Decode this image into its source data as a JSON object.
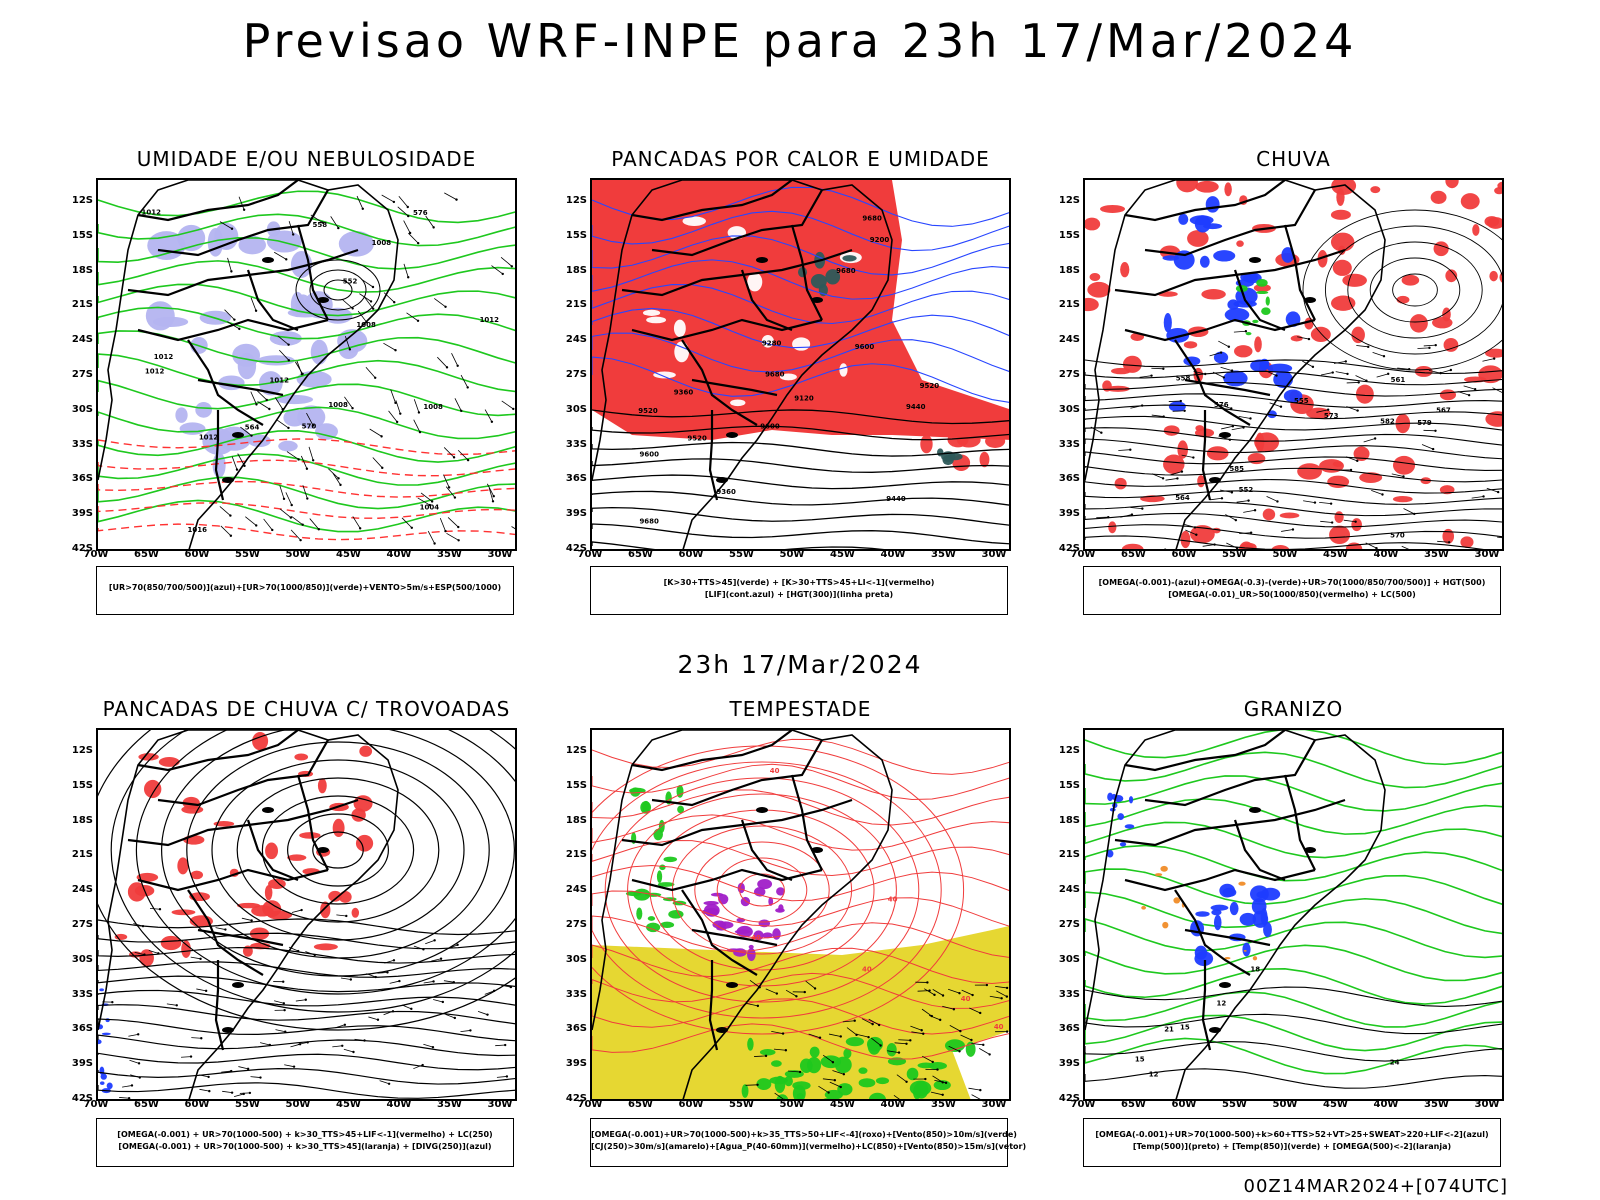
{
  "main_title": "Previsao WRF-INPE  para 23h 17/Mar/2024",
  "mid_date": "23h 17/Mar/2024",
  "run_info": "00Z14MAR2024+[074UTC]",
  "lat_ticks": [
    "12S",
    "15S",
    "18S",
    "21S",
    "24S",
    "27S",
    "30S",
    "33S",
    "36S",
    "39S",
    "42S"
  ],
  "lon_ticks": [
    "70W",
    "65W",
    "60W",
    "55W",
    "50W",
    "45W",
    "40W",
    "35W",
    "30W"
  ],
  "panels": [
    {
      "title": "UMIDADE E/OU NEBULOSIDADE",
      "legend": [
        "[UR>70(850/700/500)](azul)+[UR>70(1000/850)](verde)+VENTO>5m/s+ESP(500/1000)"
      ],
      "contour_labels": [
        "1012",
        "1012",
        "1012",
        "1008",
        "1012",
        "1004",
        "1012",
        "1016",
        "1008",
        "1008",
        "1008",
        "576",
        "570",
        "564",
        "552",
        "558",
        "1012"
      ],
      "colors": {
        "fill": "#b4b4f0",
        "contour": "#1ec81e",
        "dashed": "#ff3232"
      }
    },
    {
      "title": "PANCADAS POR CALOR E UMIDADE",
      "legend": [
        "[K>30+TTS>45](verde) + [K>30+TTS>45+LI<-1](vermelho)",
        "[LIF](cont.azul) + [HGT(300)](linha preta)"
      ],
      "contour_labels": [
        "9680",
        "9680",
        "9680",
        "9680",
        "9600",
        "9600",
        "9520",
        "9600",
        "9520",
        "9440",
        "9440",
        "9360",
        "9280",
        "9360",
        "9200",
        "9120",
        "9520"
      ],
      "colors": {
        "fill": "#f03c3c",
        "contour": "#2846ff",
        "dark": "#2d5a5a"
      }
    },
    {
      "title": "CHUVA",
      "legend": [
        "[OMEGA(-0.001)-(azul)+OMEGA(-0.3)-(verde)+UR>70(1000/850/700/500)] + HGT(500)",
        "[OMEGA(-0.01)_UR>50(1000/850)(vermelho) + LC(500)"
      ],
      "contour_labels": [
        "585",
        "582",
        "579",
        "576",
        "573",
        "570",
        "567",
        "564",
        "561",
        "558",
        "555",
        "552"
      ],
      "colors": {
        "fill": "#f03c3c",
        "blue": "#1e3cff",
        "green": "#1ec81e"
      }
    },
    {
      "title": "PANCADAS DE CHUVA C/ TROVOADAS",
      "legend": [
        "[OMEGA(-0.001) + UR>70(1000-500) + k>30_TTS>45+LIF<-1](vermelho) + LC(250)",
        "[OMEGA(-0.001) + UR>70(1000-500) + k>30_TTS>45](laranja) + [DIVG(250)](azul)"
      ],
      "contour_labels": [],
      "colors": {
        "fill": "#f03c3c",
        "blue": "#1e3cff"
      }
    },
    {
      "title": "TEMPESTADE",
      "legend": [
        "[OMEGA(-0.001)+UR>70(1000-500)+k>35_TTS>50+LIF<-4](roxo)+[Vento(850)>10m/s](verde)",
        "[CJ(250)>30m/s](amarelo)+[Agua_P(40-60mm)](vermelho)+LC(850)+[Vento(850)>15m/s](vetor)"
      ],
      "contour_labels": [
        "40",
        "40",
        "40",
        "40",
        "40",
        "40"
      ],
      "colors": {
        "yellow": "#e6d732",
        "red": "#f03c3c",
        "purple": "#a01ec8",
        "green": "#1ec81e"
      }
    },
    {
      "title": "GRANIZO",
      "legend": [
        "[OMEGA(-0.001)+UR>70(1000-500)+k>60+TTS>52+VT>25+SWEAT>220+LIF<-2](azul)",
        "[Temp(500)](preto) + [Temp(850)](verde) + [OMEGA(500)<-2](laranja)"
      ],
      "contour_labels": [
        "12",
        "15",
        "18",
        "21",
        "24",
        "12",
        "15"
      ],
      "colors": {
        "green": "#1ec81e",
        "blue": "#1e3cff",
        "orange": "#f08c28"
      }
    }
  ]
}
